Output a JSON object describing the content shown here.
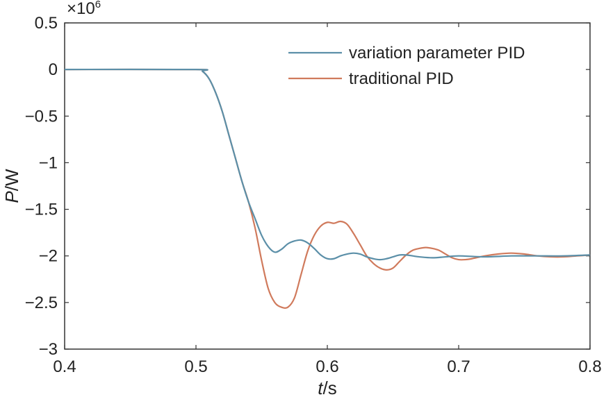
{
  "chart_data": {
    "type": "line",
    "xlabel_italic": "t",
    "xlabel_unit": "/s",
    "ylabel_italic": "P",
    "ylabel_unit": "/W",
    "y_exponent_label": "×10",
    "y_exponent_power": "6",
    "xlim": [
      0.4,
      0.8
    ],
    "ylim": [
      -3,
      0.5
    ],
    "x_ticks": [
      0.4,
      0.5,
      0.6,
      0.7,
      0.8
    ],
    "y_ticks": [
      0.5,
      0,
      -0.5,
      -1,
      -1.5,
      -2,
      -2.5,
      -3
    ],
    "x_tick_labels": [
      "0.4",
      "0.5",
      "0.6",
      "0.7",
      "0.8"
    ],
    "y_tick_labels": [
      "0.5",
      "0",
      "−0.5",
      "−1",
      "−1.5",
      "−2",
      "−2.5",
      "−3"
    ],
    "grid": false,
    "legend_position": "top-right",
    "series": [
      {
        "name": "variation parameter PID",
        "color": "#5b8fa8",
        "x": [
          0.4,
          0.5,
          0.505,
          0.51,
          0.515,
          0.52,
          0.525,
          0.53,
          0.535,
          0.54,
          0.545,
          0.55,
          0.555,
          0.56,
          0.565,
          0.57,
          0.575,
          0.58,
          0.585,
          0.59,
          0.595,
          0.6,
          0.605,
          0.61,
          0.615,
          0.62,
          0.625,
          0.63,
          0.635,
          0.64,
          0.645,
          0.65,
          0.655,
          0.66,
          0.665,
          0.67,
          0.68,
          0.69,
          0.7,
          0.72,
          0.74,
          0.76,
          0.78,
          0.8
        ],
        "y": [
          0,
          0,
          -0.02,
          -0.1,
          -0.25,
          -0.45,
          -0.7,
          -0.95,
          -1.2,
          -1.42,
          -1.6,
          -1.78,
          -1.9,
          -1.96,
          -1.93,
          -1.87,
          -1.84,
          -1.83,
          -1.86,
          -1.92,
          -1.99,
          -2.03,
          -2.03,
          -2.0,
          -1.98,
          -1.97,
          -1.98,
          -2.01,
          -2.03,
          -2.04,
          -2.03,
          -2.01,
          -1.99,
          -1.99,
          -2.0,
          -2.01,
          -2.02,
          -2.01,
          -2.0,
          -2.01,
          -2.0,
          -2.0,
          -2.0,
          -1.99
        ]
      },
      {
        "name": "traditional PID",
        "color": "#d07a5c",
        "x": [
          0.4,
          0.5,
          0.505,
          0.51,
          0.515,
          0.52,
          0.525,
          0.53,
          0.535,
          0.54,
          0.545,
          0.55,
          0.555,
          0.56,
          0.565,
          0.57,
          0.575,
          0.58,
          0.585,
          0.59,
          0.595,
          0.6,
          0.605,
          0.61,
          0.615,
          0.62,
          0.625,
          0.63,
          0.635,
          0.64,
          0.645,
          0.65,
          0.655,
          0.66,
          0.665,
          0.67,
          0.675,
          0.68,
          0.685,
          0.69,
          0.695,
          0.7,
          0.705,
          0.71,
          0.72,
          0.73,
          0.74,
          0.75,
          0.76,
          0.77,
          0.78,
          0.79,
          0.8
        ],
        "y": [
          0,
          0,
          -0.02,
          -0.1,
          -0.25,
          -0.45,
          -0.7,
          -0.95,
          -1.2,
          -1.42,
          -1.7,
          -2.05,
          -2.35,
          -2.5,
          -2.55,
          -2.55,
          -2.45,
          -2.2,
          -1.95,
          -1.78,
          -1.68,
          -1.64,
          -1.65,
          -1.63,
          -1.66,
          -1.76,
          -1.88,
          -2.0,
          -2.08,
          -2.13,
          -2.15,
          -2.13,
          -2.06,
          -1.99,
          -1.94,
          -1.92,
          -1.91,
          -1.92,
          -1.94,
          -1.98,
          -2.02,
          -2.04,
          -2.04,
          -2.03,
          -2.0,
          -1.98,
          -1.97,
          -1.98,
          -2.0,
          -2.01,
          -2.01,
          -2.0,
          -1.99
        ]
      }
    ]
  }
}
